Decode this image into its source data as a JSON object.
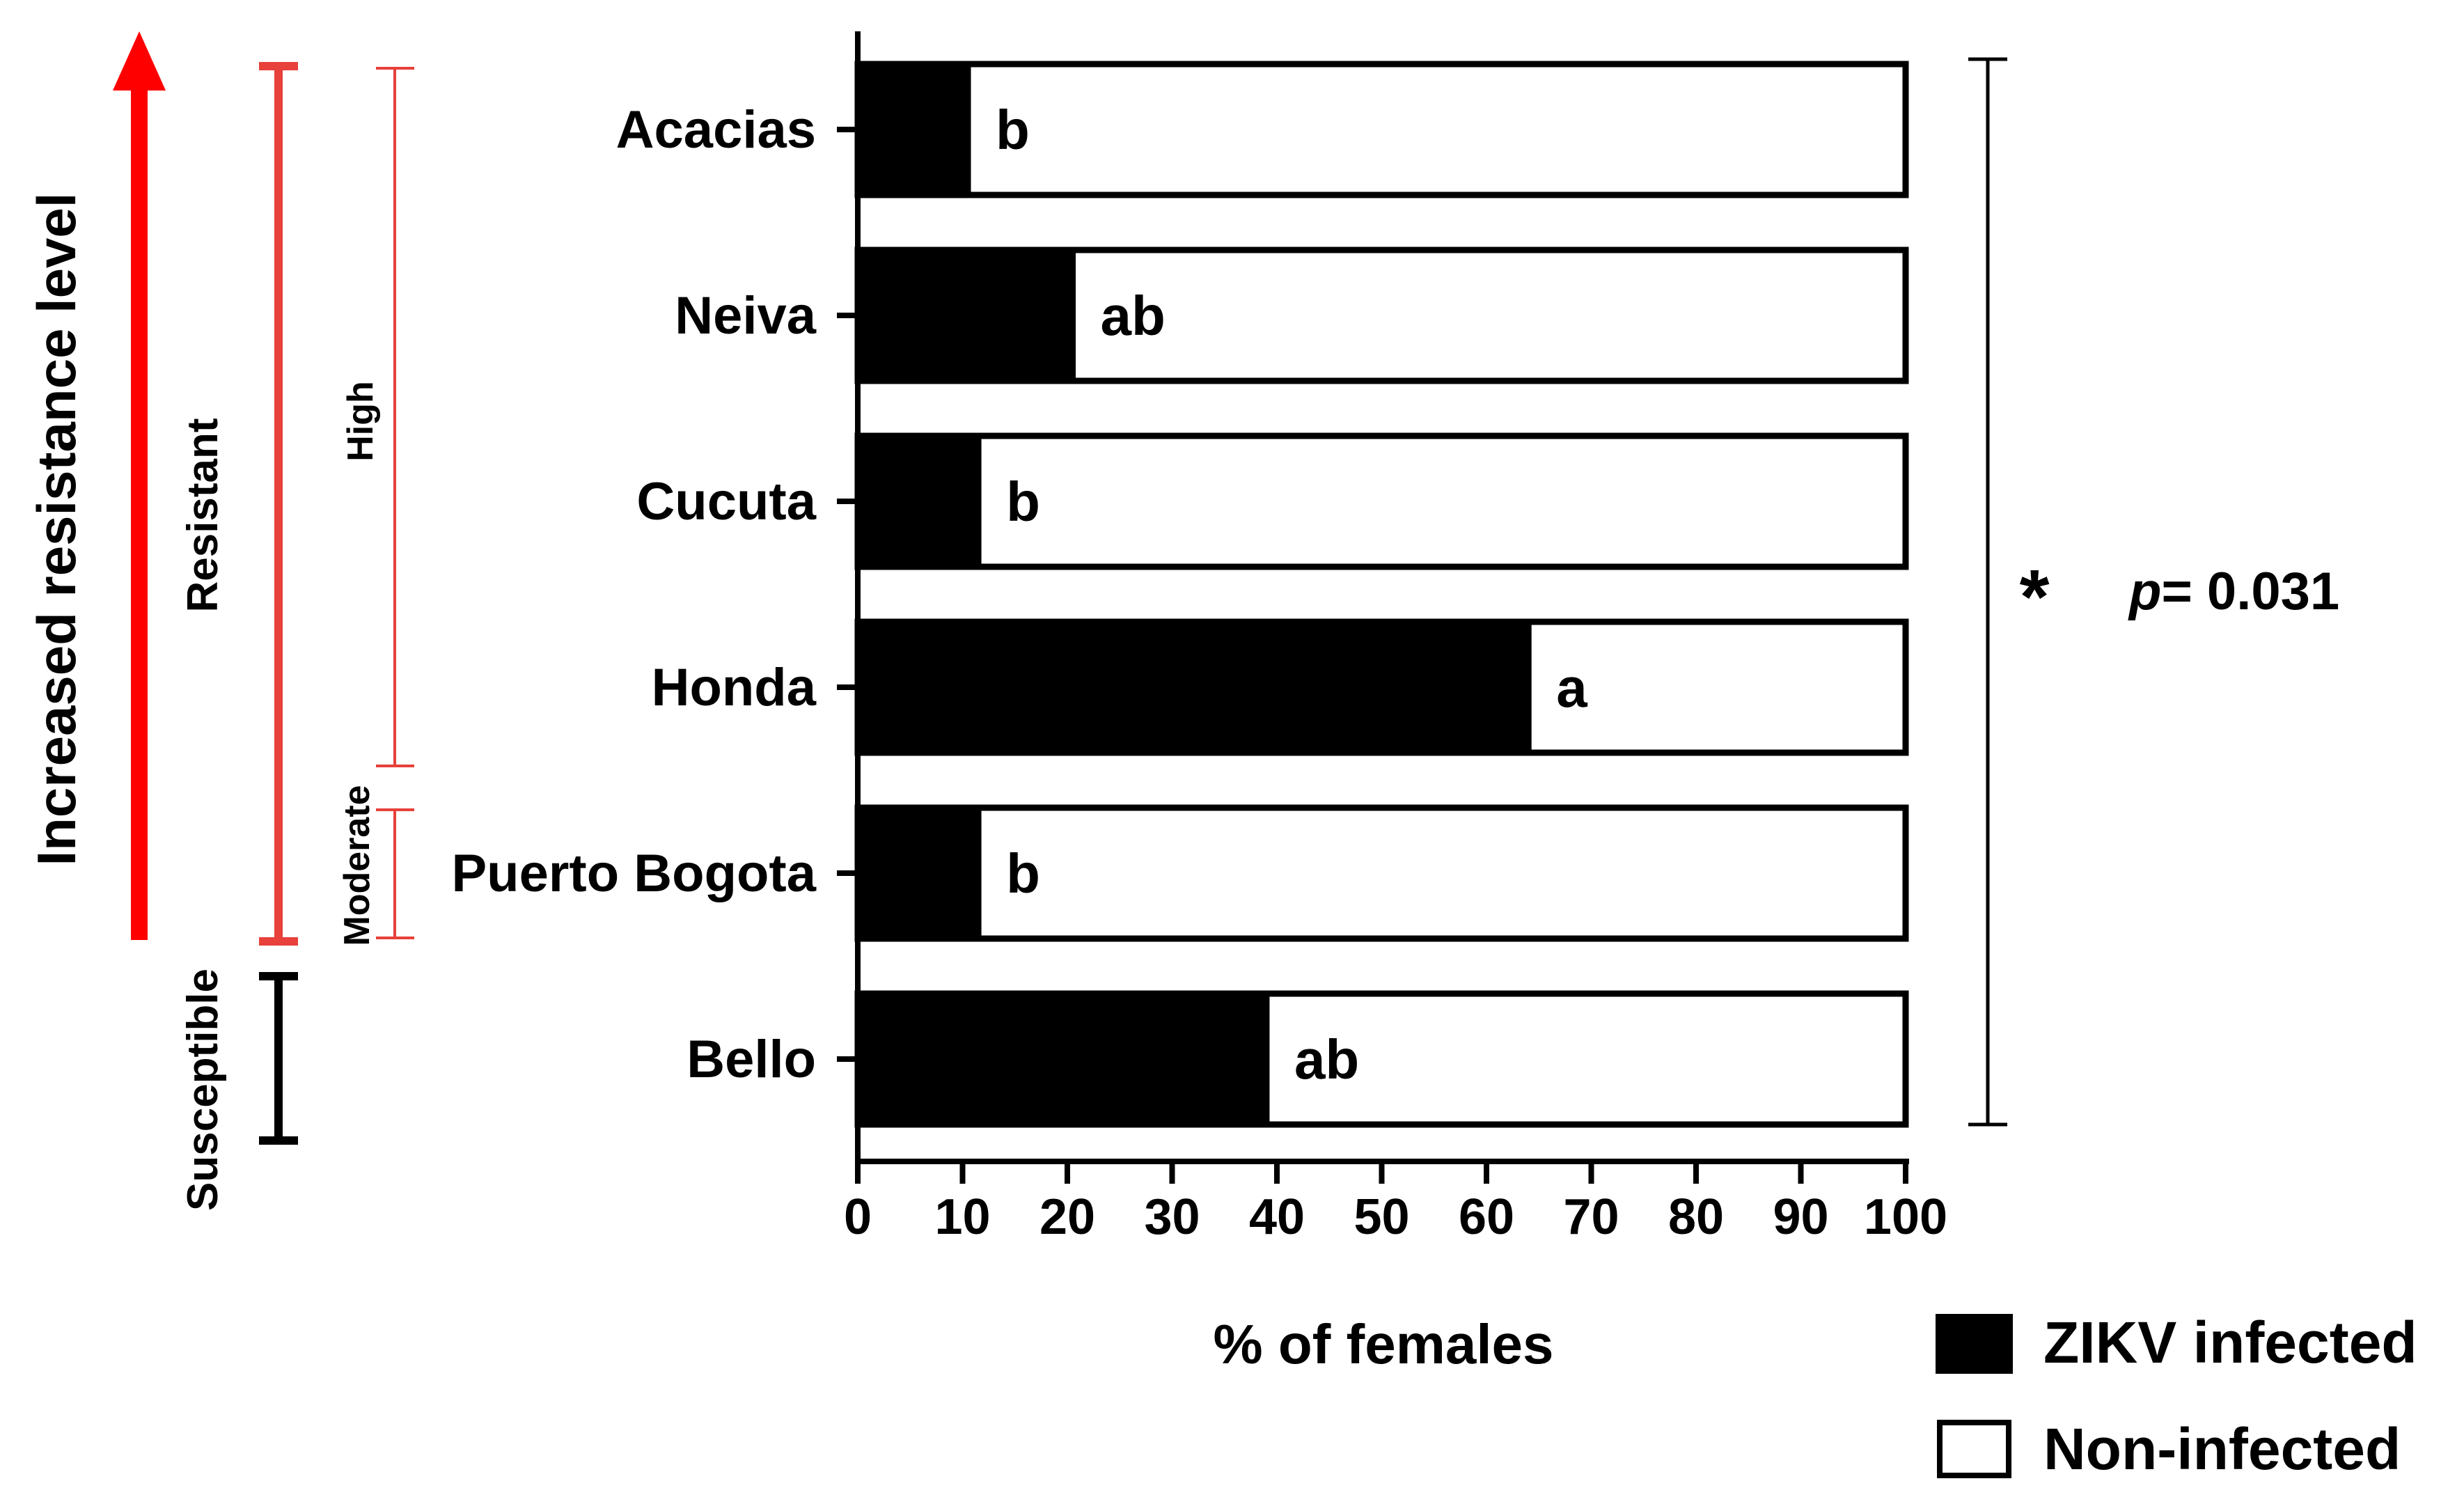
{
  "chart_data": {
    "type": "bar",
    "orientation": "horizontal",
    "stacked": true,
    "categories": [
      "Acacias",
      "Neiva",
      "Cucuta",
      "Honda",
      "Puerto Bogota",
      "Bello"
    ],
    "series": [
      {
        "name": "ZIKV infected",
        "values": [
          10.5,
          20.5,
          11.5,
          64,
          11.5,
          39
        ],
        "color": "#000000"
      },
      {
        "name": "Non-infected",
        "values": [
          89.5,
          79.5,
          88.5,
          36,
          88.5,
          61
        ],
        "color": "#ffffff"
      }
    ],
    "group_labels": [
      "b",
      "ab",
      "b",
      "a",
      "b",
      "ab"
    ],
    "xlabel": "% of females",
    "ylabel": "",
    "xlim": [
      0,
      100
    ],
    "xticks": [
      "0",
      "10",
      "20",
      "30",
      "40",
      "50",
      "60",
      "70",
      "80",
      "90",
      "100"
    ],
    "legend": {
      "position": "bottom-right",
      "entries": [
        "ZIKV infected",
        "Non-infected"
      ]
    },
    "grid": false,
    "significance": {
      "marker": "*",
      "p_prefix": "p",
      "p_value": "= 0.031"
    },
    "side_annotations": {
      "arrow_label": "Increased resistance level",
      "resistant": "Resistant",
      "susceptible": "Susceptible",
      "high": "High",
      "moderate": "Moderate"
    },
    "colors": {
      "accent_red": "#ff0000",
      "bracket_red": "#e8403a",
      "black": "#000000"
    }
  }
}
